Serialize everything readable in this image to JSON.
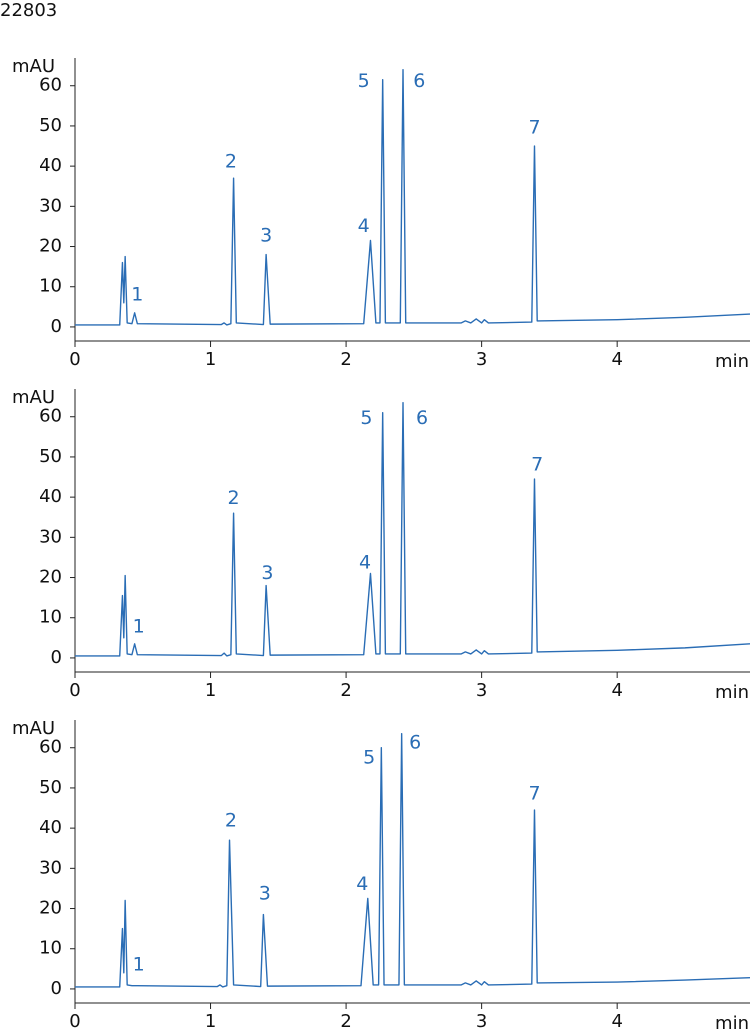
{
  "figure_id": "22803",
  "chart_data": [
    {
      "type": "line",
      "y_label": "mAU",
      "x_label": "min",
      "color": "#2a6db5",
      "xlim": [
        0,
        4.98
      ],
      "ylim": [
        -3.5,
        66.9
      ],
      "xticks": [
        0,
        1,
        2,
        3,
        4
      ],
      "yticks": [
        0,
        10,
        20,
        30,
        40,
        50,
        60
      ],
      "x": [
        0,
        0.33,
        0.35,
        0.36,
        0.37,
        0.385,
        0.42,
        0.44,
        0.46,
        1.08,
        1.1,
        1.12,
        1.15,
        1.17,
        1.19,
        1.39,
        1.41,
        1.44,
        2.13,
        2.18,
        2.22,
        2.25,
        2.27,
        2.29,
        2.4,
        2.42,
        2.44,
        2.85,
        2.88,
        2.92,
        2.96,
        3.0,
        3.02,
        3.05,
        3.37,
        3.39,
        3.41,
        4.0,
        4.5,
        4.98
      ],
      "values": [
        0.5,
        0.5,
        16,
        6,
        17.5,
        1,
        0.8,
        3.5,
        0.8,
        0.6,
        1,
        0.5,
        0.8,
        37,
        1,
        0.6,
        18,
        0.7,
        0.8,
        21.5,
        1,
        1,
        61.5,
        1,
        1,
        64,
        1,
        1,
        1.5,
        1,
        2,
        1,
        1.8,
        1,
        1.2,
        45,
        1.5,
        1.8,
        2.4,
        3.2
      ],
      "annotations": [
        {
          "text": "1",
          "x": 0.46,
          "y": 8
        },
        {
          "text": "2",
          "x": 1.15,
          "y": 41
        },
        {
          "text": "3",
          "x": 1.41,
          "y": 22.6
        },
        {
          "text": "4",
          "x": 2.13,
          "y": 25
        },
        {
          "text": "5",
          "x": 2.13,
          "y": 61
        },
        {
          "text": "6",
          "x": 2.54,
          "y": 61
        },
        {
          "text": "7",
          "x": 3.39,
          "y": 49.5
        }
      ]
    },
    {
      "type": "line",
      "y_label": "mAU",
      "x_label": "min",
      "color": "#2a6db5",
      "xlim": [
        0,
        4.98
      ],
      "ylim": [
        -3.5,
        66.9
      ],
      "xticks": [
        0,
        1,
        2,
        3,
        4
      ],
      "yticks": [
        0,
        10,
        20,
        30,
        40,
        50,
        60
      ],
      "x": [
        0,
        0.33,
        0.35,
        0.36,
        0.37,
        0.385,
        0.42,
        0.44,
        0.46,
        1.08,
        1.1,
        1.12,
        1.15,
        1.17,
        1.19,
        1.39,
        1.41,
        1.44,
        2.13,
        2.18,
        2.22,
        2.25,
        2.27,
        2.29,
        2.4,
        2.42,
        2.44,
        2.85,
        2.88,
        2.92,
        2.96,
        3.0,
        3.02,
        3.05,
        3.37,
        3.39,
        3.41,
        4.0,
        4.5,
        4.98
      ],
      "values": [
        0.5,
        0.5,
        15.5,
        5,
        20.5,
        1,
        0.8,
        3.5,
        0.8,
        0.6,
        1.2,
        0.5,
        0.8,
        36,
        1,
        0.6,
        18,
        0.7,
        0.8,
        21,
        1,
        1,
        61,
        1,
        1,
        63.5,
        1,
        1,
        1.5,
        1,
        2,
        1,
        1.8,
        1,
        1.2,
        44.5,
        1.5,
        1.9,
        2.5,
        3.5
      ],
      "annotations": [
        {
          "text": "1",
          "x": 0.47,
          "y": 7.7
        },
        {
          "text": "2",
          "x": 1.17,
          "y": 39.7
        },
        {
          "text": "3",
          "x": 1.42,
          "y": 21
        },
        {
          "text": "4",
          "x": 2.14,
          "y": 23.6
        },
        {
          "text": "5",
          "x": 2.15,
          "y": 59.6
        },
        {
          "text": "6",
          "x": 2.56,
          "y": 59.6
        },
        {
          "text": "7",
          "x": 3.41,
          "y": 48
        }
      ]
    },
    {
      "type": "line",
      "y_label": "mAU",
      "x_label": "min",
      "color": "#2a6db5",
      "xlim": [
        0,
        4.98
      ],
      "ylim": [
        -3.5,
        66.9
      ],
      "xticks": [
        0,
        1,
        2,
        3,
        4
      ],
      "yticks": [
        0,
        10,
        20,
        30,
        40,
        50,
        60
      ],
      "x": [
        0,
        0.33,
        0.35,
        0.36,
        0.37,
        0.385,
        0.42,
        0.44,
        0.46,
        1.05,
        1.07,
        1.09,
        1.12,
        1.14,
        1.17,
        1.37,
        1.39,
        1.42,
        2.11,
        2.16,
        2.2,
        2.24,
        2.26,
        2.28,
        2.39,
        2.41,
        2.43,
        2.85,
        2.88,
        2.92,
        2.96,
        3.0,
        3.02,
        3.05,
        3.37,
        3.39,
        3.41,
        4.0,
        4.5,
        4.98
      ],
      "values": [
        0.5,
        0.5,
        15,
        4,
        22,
        1,
        0.8,
        0.8,
        0.8,
        0.6,
        1,
        0.5,
        0.8,
        37,
        1,
        0.6,
        18.5,
        0.7,
        0.8,
        22.5,
        1,
        1,
        60,
        1,
        1,
        63.5,
        1,
        1,
        1.5,
        1,
        2,
        1,
        1.8,
        1,
        1.2,
        44.5,
        1.5,
        1.7,
        2.2,
        2.8
      ],
      "annotations": [
        {
          "text": "1",
          "x": 0.47,
          "y": 6
        },
        {
          "text": "2",
          "x": 1.15,
          "y": 41.8
        },
        {
          "text": "3",
          "x": 1.4,
          "y": 23.6
        },
        {
          "text": "4",
          "x": 2.12,
          "y": 26
        },
        {
          "text": "5",
          "x": 2.17,
          "y": 57.5
        },
        {
          "text": "6",
          "x": 2.51,
          "y": 61.2
        },
        {
          "text": "7",
          "x": 3.39,
          "y": 48.5
        }
      ]
    }
  ]
}
